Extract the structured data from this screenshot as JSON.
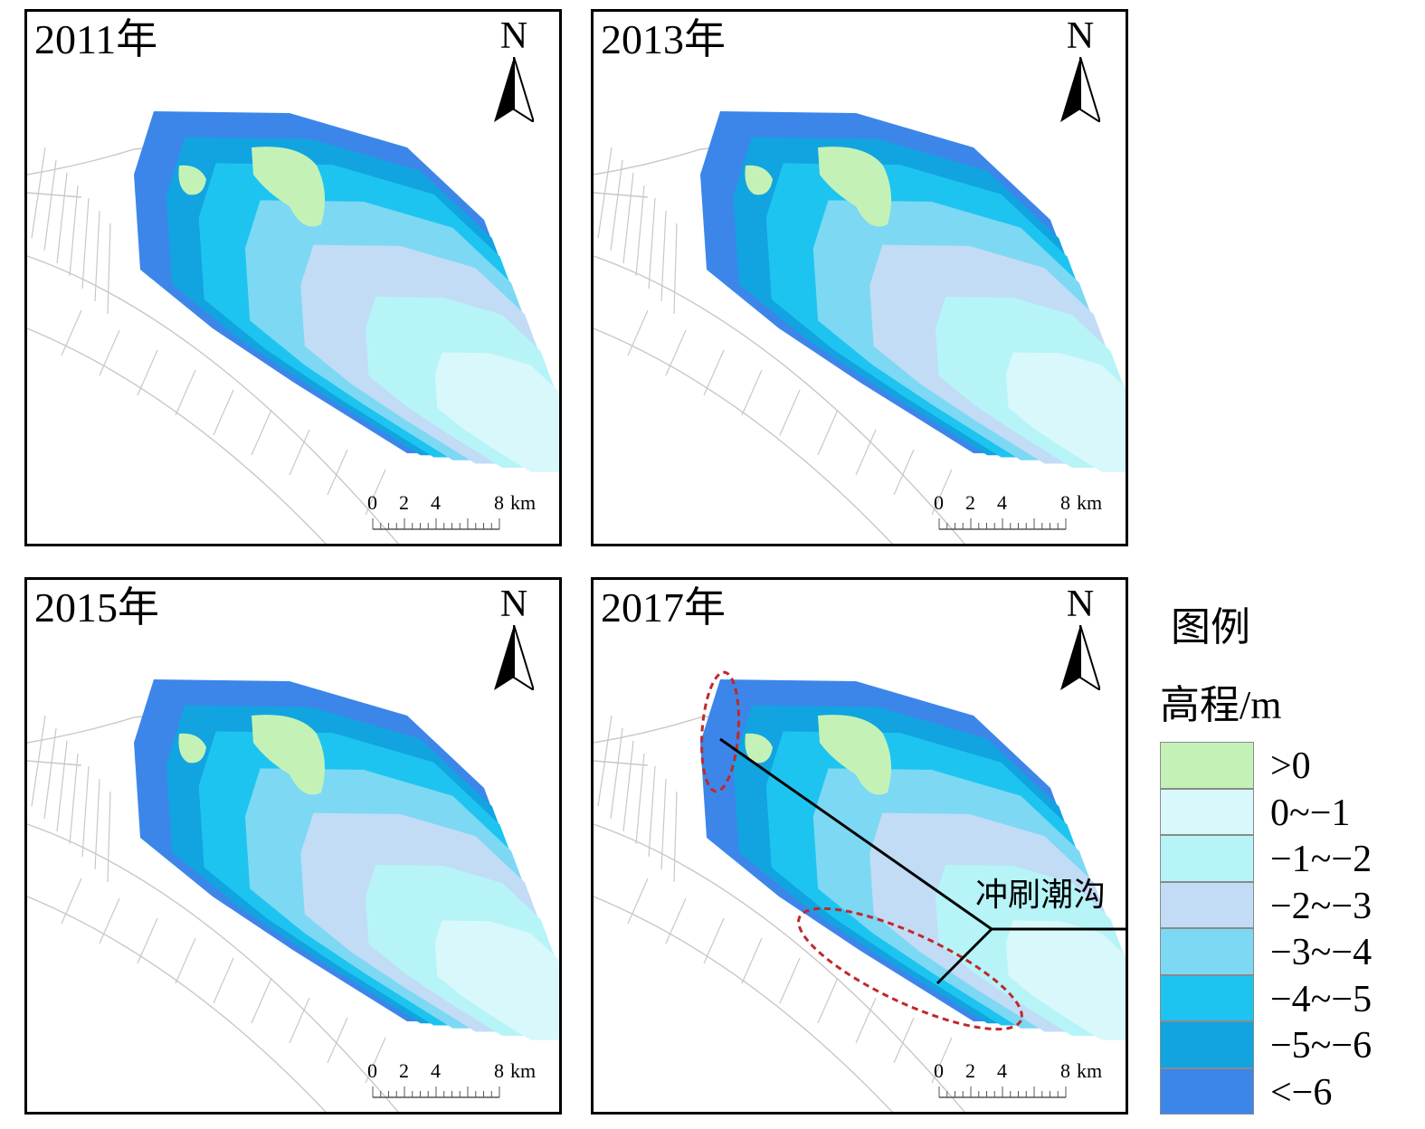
{
  "panels": [
    {
      "year": "2011年"
    },
    {
      "year": "2013年"
    },
    {
      "year": "2015年"
    },
    {
      "year": "2017年"
    }
  ],
  "north_arrow": {
    "letter": "N"
  },
  "scalebar": {
    "ticks": [
      "0",
      "2",
      "4",
      "8"
    ],
    "unit": "km"
  },
  "legend": {
    "title": "图例",
    "subtitle_cn": "高程",
    "subtitle_unit": "/m",
    "classes": [
      {
        "label": ">0",
        "color": "#c4f2b6"
      },
      {
        "label": "0~−1",
        "color": "#d8f8fb"
      },
      {
        "label": "−1~−2",
        "color": "#b6f4f8"
      },
      {
        "label": "−2~−3",
        "color": "#c2dcf5"
      },
      {
        "label": "−3~−4",
        "color": "#7dd8f4"
      },
      {
        "label": "−4~−5",
        "color": "#1ec4f0"
      },
      {
        "label": "−5~−6",
        "color": "#11a4e0"
      },
      {
        "label": "<−6",
        "color": "#3c86ea"
      }
    ]
  },
  "annotation": {
    "label": "冲刷潮沟",
    "ellipse_color": "#c0282a"
  }
}
